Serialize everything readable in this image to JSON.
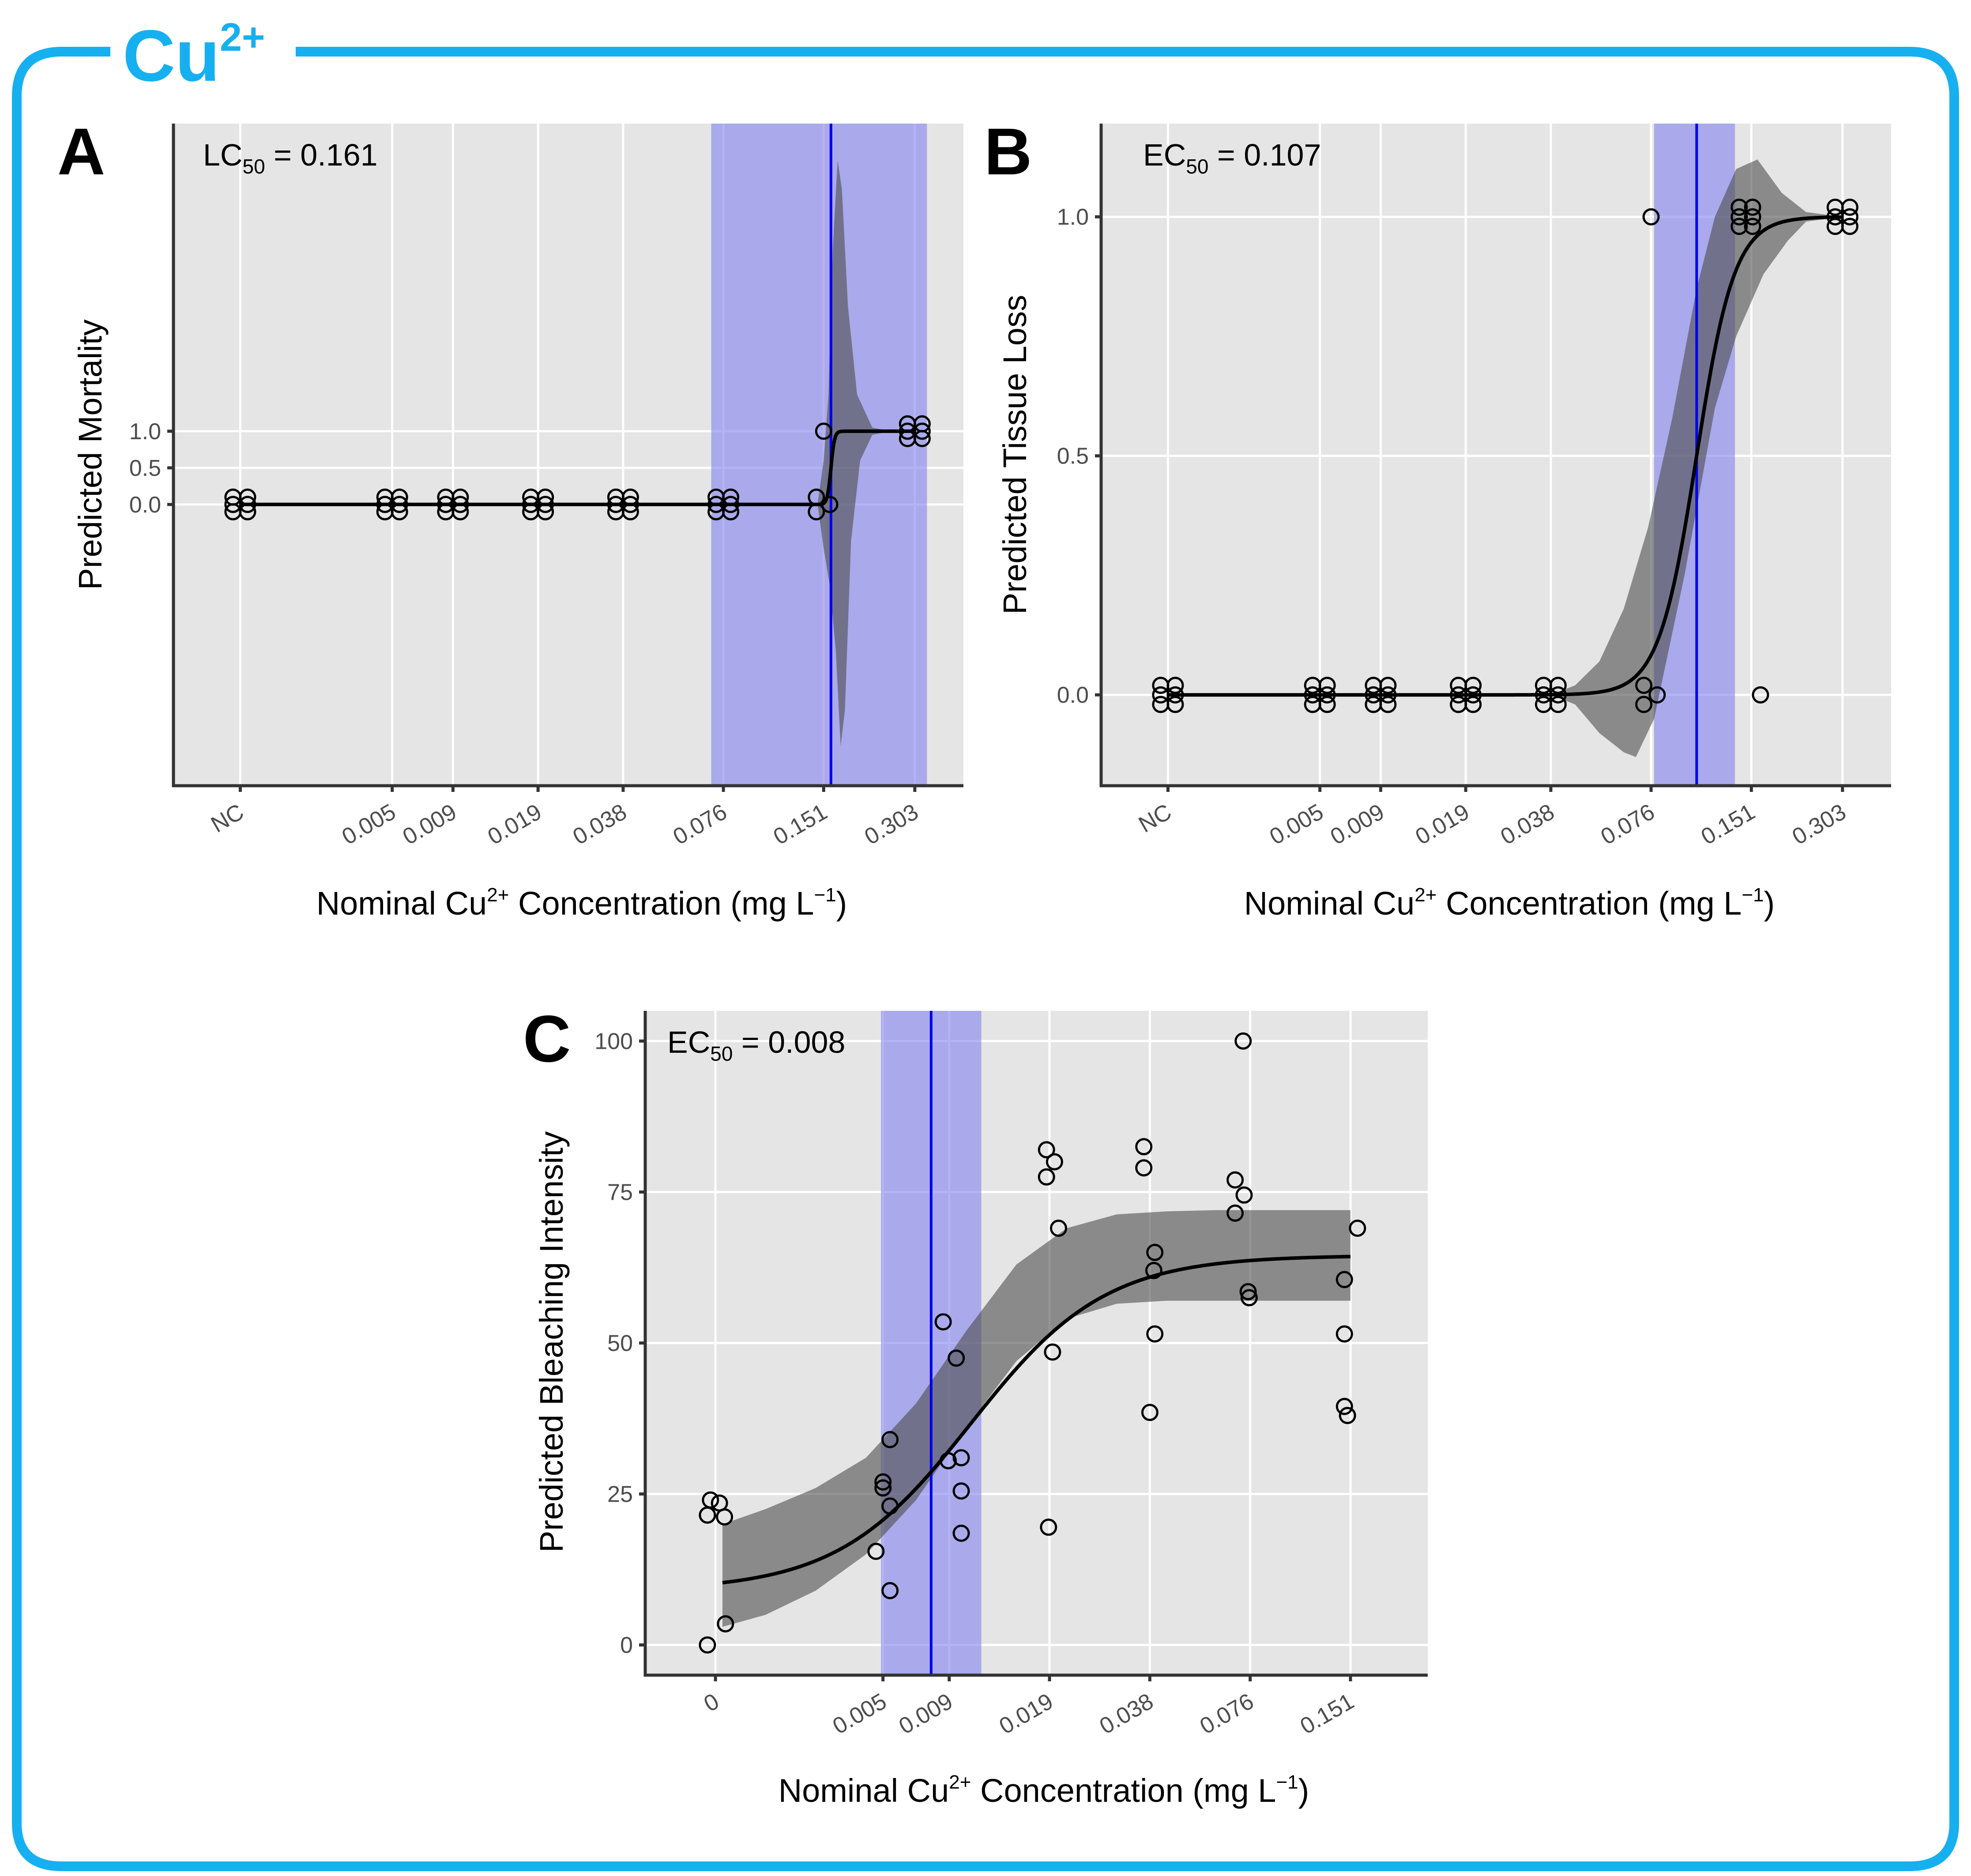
{
  "figure": {
    "ion_label": "Cu",
    "ion_charge": "2+",
    "frame_color": "#16b0f0",
    "band_color": "#8080ee",
    "line_color": "#0000ee",
    "ci_color": "#4d4d4d"
  },
  "chart_data": [
    {
      "id": "A",
      "type": "line",
      "panel_label": "A",
      "stat_name": "LC",
      "stat_sub": "50",
      "stat_value": " = 0.161",
      "ylabel": "Predicted Mortality",
      "xlabel": {
        "pre": "Nominal Cu",
        "sup1": "2+",
        "mid": " Concentration (mg L",
        "sup2": "−1",
        "post": ")"
      },
      "categories": [
        "NC",
        "0.005",
        "0.009",
        "0.019",
        "0.038",
        "0.076",
        "0.151",
        "0.303"
      ],
      "x_positions": [
        -0.5,
        2.0,
        3.0,
        4.4,
        5.8,
        7.45,
        9.1,
        10.6
      ],
      "xlim": [
        -1.6,
        11.4
      ],
      "ylim": [
        -3.84,
        5.2
      ],
      "yticks": [
        0.0,
        0.5,
        1.0
      ],
      "yticklabels": [
        "0.0",
        "0.5",
        "1.0"
      ],
      "ec50_x": 9.22,
      "band": [
        7.25,
        10.8
      ],
      "curve": {
        "x0": 9.22,
        "k": 35,
        "lo": 0.0,
        "hi": 1.0,
        "xstart": -0.5,
        "xend": 10.6
      },
      "ci": {
        "lower": [
          [
            9.0,
            0
          ],
          [
            9.05,
            -0.3
          ],
          [
            9.1,
            -0.6
          ],
          [
            9.2,
            -1.1
          ],
          [
            9.3,
            -2.0
          ],
          [
            9.38,
            -3.3
          ],
          [
            9.45,
            -2.8
          ],
          [
            9.55,
            -0.5
          ],
          [
            9.7,
            0.6
          ],
          [
            9.9,
            0.95
          ],
          [
            10.2,
            1.0
          ],
          [
            10.6,
            1.0
          ]
        ],
        "upper": [
          [
            9.0,
            0
          ],
          [
            9.05,
            0.3
          ],
          [
            9.1,
            0.6
          ],
          [
            9.18,
            1.5
          ],
          [
            9.25,
            3.5
          ],
          [
            9.33,
            4.7
          ],
          [
            9.4,
            4.3
          ],
          [
            9.5,
            2.7
          ],
          [
            9.65,
            1.5
          ],
          [
            9.9,
            1.05
          ],
          [
            10.2,
            1.0
          ],
          [
            10.6,
            1.0
          ]
        ]
      },
      "points": [
        [
          -0.62,
          0
        ],
        [
          -0.38,
          0
        ],
        [
          -0.62,
          0.1
        ],
        [
          -0.38,
          0.1
        ],
        [
          -0.62,
          -0.1
        ],
        [
          -0.38,
          -0.1
        ],
        [
          1.88,
          0
        ],
        [
          2.12,
          0
        ],
        [
          1.88,
          0.1
        ],
        [
          2.12,
          0.1
        ],
        [
          1.88,
          -0.1
        ],
        [
          2.12,
          -0.1
        ],
        [
          2.88,
          0
        ],
        [
          3.12,
          0
        ],
        [
          2.88,
          0.1
        ],
        [
          3.12,
          0.1
        ],
        [
          2.88,
          -0.1
        ],
        [
          3.12,
          -0.1
        ],
        [
          4.28,
          0
        ],
        [
          4.52,
          0
        ],
        [
          4.28,
          0.1
        ],
        [
          4.52,
          0.1
        ],
        [
          4.28,
          -0.1
        ],
        [
          4.52,
          -0.1
        ],
        [
          5.68,
          0
        ],
        [
          5.92,
          0
        ],
        [
          5.68,
          0.1
        ],
        [
          5.92,
          0.1
        ],
        [
          5.68,
          -0.1
        ],
        [
          5.92,
          -0.1
        ],
        [
          7.33,
          0
        ],
        [
          7.57,
          0
        ],
        [
          7.33,
          0.1
        ],
        [
          7.57,
          0.1
        ],
        [
          7.33,
          -0.1
        ],
        [
          7.57,
          -0.1
        ],
        [
          8.98,
          0.1
        ],
        [
          8.98,
          -0.1
        ],
        [
          9.2,
          0
        ],
        [
          9.1,
          1.0
        ],
        [
          10.48,
          1.0
        ],
        [
          10.72,
          1.0
        ],
        [
          10.48,
          1.1
        ],
        [
          10.72,
          1.1
        ],
        [
          10.48,
          0.9
        ],
        [
          10.72,
          0.9
        ]
      ]
    },
    {
      "id": "B",
      "type": "line",
      "panel_label": "B",
      "stat_name": "EC",
      "stat_sub": "50",
      "stat_value": " = 0.107",
      "ylabel": "Predicted Tissue Loss",
      "xlabel": {
        "pre": "Nominal Cu",
        "sup1": "2+",
        "mid": " Concentration (mg L",
        "sup2": "−1",
        "post": ")"
      },
      "categories": [
        "NC",
        "0.005",
        "0.009",
        "0.019",
        "0.038",
        "0.076",
        "0.151",
        "0.303"
      ],
      "x_positions": [
        -0.5,
        2.0,
        3.0,
        4.4,
        5.8,
        7.45,
        9.1,
        10.6
      ],
      "xlim": [
        -1.6,
        11.4
      ],
      "ylim": [
        -0.19,
        1.195
      ],
      "yticks": [
        0.0,
        0.5,
        1.0
      ],
      "yticklabels": [
        "0.0",
        "0.5",
        "1.0"
      ],
      "ec50_x": 8.2,
      "band": [
        7.5,
        8.83
      ],
      "curve": {
        "x0": 8.2,
        "k": 3.2,
        "lo": 0.0,
        "hi": 1.0,
        "xstart": -0.5,
        "xend": 10.6
      },
      "ci": {
        "lower": [
          [
            5.8,
            0
          ],
          [
            6.2,
            -0.02
          ],
          [
            6.6,
            -0.08
          ],
          [
            7.0,
            -0.12
          ],
          [
            7.2,
            -0.13
          ],
          [
            7.5,
            -0.05
          ],
          [
            8.0,
            0.25
          ],
          [
            8.5,
            0.6
          ],
          [
            8.85,
            0.75
          ],
          [
            9.3,
            0.88
          ],
          [
            9.7,
            0.95
          ],
          [
            10.0,
            0.99
          ],
          [
            10.6,
            1.0
          ]
        ],
        "upper": [
          [
            5.8,
            0
          ],
          [
            6.2,
            0.02
          ],
          [
            6.6,
            0.07
          ],
          [
            7.0,
            0.18
          ],
          [
            7.4,
            0.35
          ],
          [
            7.8,
            0.58
          ],
          [
            8.2,
            0.85
          ],
          [
            8.5,
            1.0
          ],
          [
            8.85,
            1.1
          ],
          [
            9.2,
            1.12
          ],
          [
            9.6,
            1.05
          ],
          [
            10.0,
            1.01
          ],
          [
            10.6,
            1.0
          ]
        ]
      },
      "points": [
        [
          -0.62,
          0
        ],
        [
          -0.38,
          0
        ],
        [
          -0.62,
          0.02
        ],
        [
          -0.38,
          0.02
        ],
        [
          -0.62,
          -0.02
        ],
        [
          -0.38,
          -0.02
        ],
        [
          1.88,
          0
        ],
        [
          2.12,
          0
        ],
        [
          1.88,
          0.02
        ],
        [
          2.12,
          0.02
        ],
        [
          1.88,
          -0.02
        ],
        [
          2.12,
          -0.02
        ],
        [
          2.88,
          0
        ],
        [
          3.12,
          0
        ],
        [
          2.88,
          0.02
        ],
        [
          3.12,
          0.02
        ],
        [
          2.88,
          -0.02
        ],
        [
          3.12,
          -0.02
        ],
        [
          4.28,
          0
        ],
        [
          4.52,
          0
        ],
        [
          4.28,
          0.02
        ],
        [
          4.52,
          0.02
        ],
        [
          4.28,
          -0.02
        ],
        [
          4.52,
          -0.02
        ],
        [
          5.68,
          0
        ],
        [
          5.92,
          0
        ],
        [
          5.68,
          0.02
        ],
        [
          5.92,
          0.02
        ],
        [
          5.68,
          -0.02
        ],
        [
          5.92,
          -0.02
        ],
        [
          7.33,
          0.02
        ],
        [
          7.33,
          -0.02
        ],
        [
          7.55,
          0
        ],
        [
          7.45,
          1.0
        ],
        [
          8.9,
          1.0
        ],
        [
          9.12,
          1.0
        ],
        [
          8.9,
          1.02
        ],
        [
          9.12,
          1.02
        ],
        [
          8.9,
          0.98
        ],
        [
          9.12,
          0.98
        ],
        [
          9.25,
          0
        ],
        [
          10.48,
          1.0
        ],
        [
          10.72,
          1.0
        ],
        [
          10.48,
          1.02
        ],
        [
          10.72,
          1.02
        ],
        [
          10.48,
          0.98
        ],
        [
          10.72,
          0.98
        ]
      ]
    },
    {
      "id": "C",
      "type": "line",
      "panel_label": "C",
      "stat_name": "EC",
      "stat_sub": "50",
      "stat_value": " = 0.008",
      "ylabel": "Predicted Bleaching Intensity",
      "xlabel": {
        "pre": "Nominal Cu",
        "sup1": "2+",
        "mid": " Concentration (mg L",
        "sup2": "−1",
        "post": ")"
      },
      "categories": [
        "0",
        "0.005",
        "0.009",
        "0.019",
        "0.038",
        "0.076",
        "0.151"
      ],
      "x_positions": [
        0,
        1.67,
        2.33,
        3.33,
        4.33,
        5.33,
        6.33
      ],
      "xlim": [
        -0.7,
        7.1
      ],
      "ylim": [
        -5,
        105
      ],
      "yticks": [
        0,
        25,
        50,
        75,
        100
      ],
      "yticklabels": [
        "0",
        "25",
        "50",
        "75",
        "100"
      ],
      "ec50_x": 2.15,
      "band": [
        1.65,
        2.65
      ],
      "curve": {
        "x0": 2.55,
        "k": 1.5,
        "lo": 9,
        "hi": 64.5,
        "xstart": 0.07,
        "xend": 6.33
      },
      "ci": {
        "lower": [
          [
            0.07,
            3
          ],
          [
            0.5,
            5
          ],
          [
            1.0,
            9
          ],
          [
            1.5,
            15
          ],
          [
            2.0,
            24
          ],
          [
            2.5,
            36
          ],
          [
            3.0,
            47
          ],
          [
            3.5,
            54
          ],
          [
            4.0,
            56.5
          ],
          [
            4.5,
            57
          ],
          [
            5.0,
            57
          ],
          [
            6.33,
            57
          ]
        ],
        "upper": [
          [
            0.07,
            20
          ],
          [
            0.5,
            22.5
          ],
          [
            1.0,
            26
          ],
          [
            1.5,
            31
          ],
          [
            2.0,
            40
          ],
          [
            2.5,
            52
          ],
          [
            3.0,
            63
          ],
          [
            3.5,
            69
          ],
          [
            4.0,
            71.3
          ],
          [
            4.5,
            71.8
          ],
          [
            5.0,
            72
          ],
          [
            6.33,
            72
          ]
        ]
      },
      "points": [
        [
          -0.08,
          0
        ],
        [
          0.1,
          3.5
        ],
        [
          -0.05,
          24
        ],
        [
          0.04,
          23.5
        ],
        [
          -0.08,
          21.5
        ],
        [
          0.09,
          21.2
        ],
        [
          1.67,
          27
        ],
        [
          1.67,
          26
        ],
        [
          1.74,
          34
        ],
        [
          1.74,
          23
        ],
        [
          1.6,
          15.5
        ],
        [
          1.74,
          9
        ],
        [
          2.27,
          53.5
        ],
        [
          2.4,
          47.5
        ],
        [
          2.32,
          30.5
        ],
        [
          2.45,
          31
        ],
        [
          2.45,
          25.5
        ],
        [
          2.45,
          18.5
        ],
        [
          3.3,
          82
        ],
        [
          3.3,
          77.5
        ],
        [
          3.38,
          80
        ],
        [
          3.42,
          69
        ],
        [
          3.36,
          48.5
        ],
        [
          3.32,
          19.5
        ],
        [
          4.27,
          82.5
        ],
        [
          4.27,
          79
        ],
        [
          4.38,
          65
        ],
        [
          4.37,
          62
        ],
        [
          4.38,
          51.5
        ],
        [
          4.33,
          38.5
        ],
        [
          5.26,
          100
        ],
        [
          5.18,
          77
        ],
        [
          5.27,
          74.5
        ],
        [
          5.18,
          71.5
        ],
        [
          5.31,
          58.5
        ],
        [
          5.32,
          57.5
        ],
        [
          6.27,
          60.5
        ],
        [
          6.4,
          69
        ],
        [
          6.27,
          51.5
        ],
        [
          6.27,
          39.5
        ],
        [
          6.3,
          38
        ]
      ]
    }
  ]
}
